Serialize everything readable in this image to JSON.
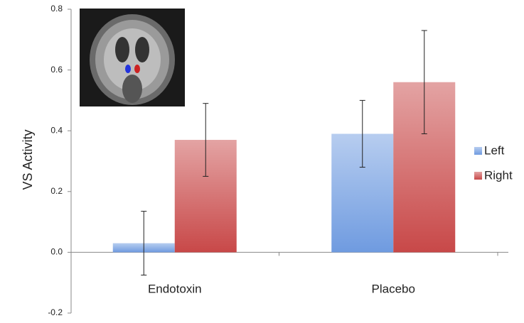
{
  "chart_data": {
    "type": "bar",
    "y_label": "VS Activity",
    "categories": [
      "Endotoxin",
      "Placebo"
    ],
    "series": [
      {
        "name": "Left",
        "color": "#6f9be0",
        "values": [
          0.03,
          0.39
        ],
        "errors": [
          0.105,
          0.11
        ]
      },
      {
        "name": "Right",
        "color": "#c84848",
        "values": [
          0.37,
          0.56
        ],
        "errors": [
          0.12,
          0.17
        ]
      }
    ],
    "ylim": [
      -0.2,
      0.8
    ],
    "yticks": [
      -0.2,
      {
        "value": 0,
        "label": "0.0"
      },
      0.2,
      0.4,
      0.6,
      0.8
    ]
  }
}
